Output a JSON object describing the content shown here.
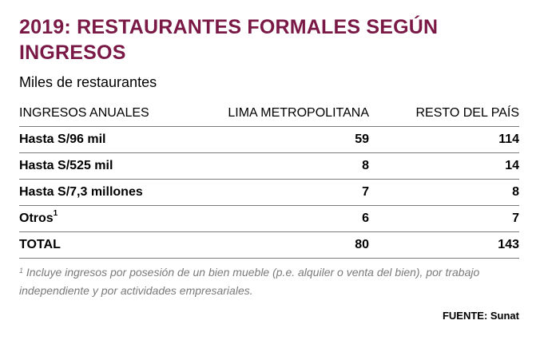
{
  "title": "2019: RESTAURANTES FORMALES SEGÚN INGRESOS",
  "subtitle": "Miles de restaurantes",
  "table": {
    "headers": [
      "INGRESOS ANUALES",
      "LIMA METROPOLITANA",
      "RESTO DEL PAÍS"
    ],
    "rows": [
      {
        "label": "Hasta S/96 mil",
        "lima": "59",
        "resto": "114"
      },
      {
        "label": "Hasta S/525 mil",
        "lima": "8",
        "resto": "14"
      },
      {
        "label": "Hasta S/7,3 millones",
        "lima": "7",
        "resto": "8"
      },
      {
        "label": "Otros",
        "sup": "1",
        "lima": "6",
        "resto": "7"
      },
      {
        "label": "TOTAL",
        "lima": "80",
        "resto": "143"
      }
    ]
  },
  "footnote": {
    "marker": "1",
    "text": " Incluye ingresos por posesión de un bien mueble (p.e. alquiler o venta del bien), por trabajo independiente y por actividades empresariales."
  },
  "source": "FUENTE: Sunat",
  "colors": {
    "title": "#7a1846",
    "rules": "#7a7a7a",
    "footnote": "#7a7a7a"
  }
}
